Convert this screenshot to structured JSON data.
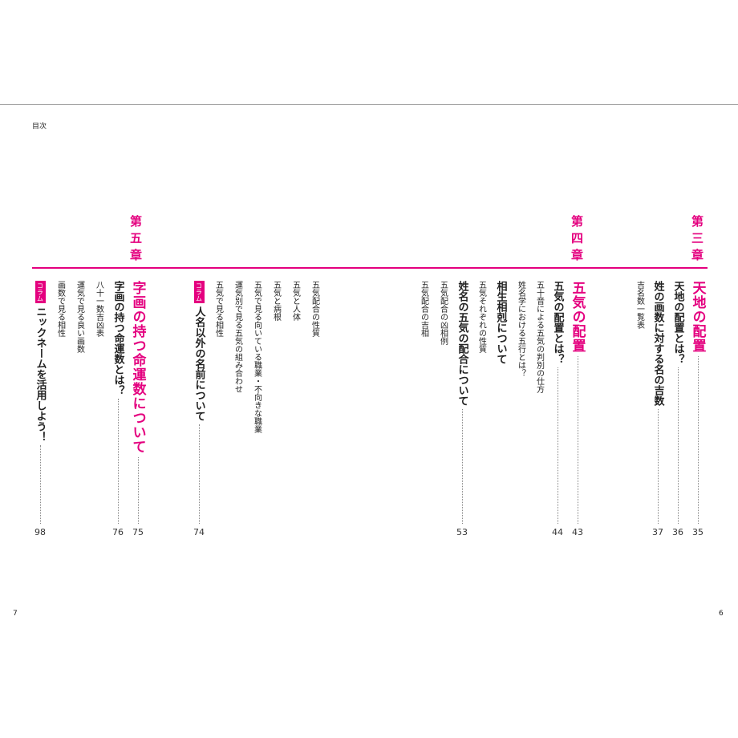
{
  "header": {
    "title": "目次"
  },
  "pages": {
    "left": "7",
    "right": "6"
  },
  "chapters": [
    {
      "label": "第三章",
      "entries": [
        {
          "title": "天地の配置",
          "page": "35"
        },
        {
          "title": "天地の配置とは？",
          "page": "36"
        },
        {
          "title": "姓の画数に対する名の吉数",
          "page": "37"
        },
        {
          "title": "吉名数一覧表"
        }
      ]
    },
    {
      "label": "第四章",
      "entries": [
        {
          "title": "五気の配置",
          "page": "43"
        },
        {
          "title": "五気の配置とは？",
          "page": "44"
        },
        {
          "title": "五十音による五気の判別の仕方"
        },
        {
          "title": "姓名学における五行とは？"
        },
        {
          "title": "相生相剋について"
        },
        {
          "title": "五気それぞれの性質"
        },
        {
          "title": "姓名の五気の配合について",
          "page": "53"
        },
        {
          "title": "五気配合の凶相例"
        },
        {
          "title": "五気配合の吉相"
        },
        {
          "title": "五気配合の性質"
        },
        {
          "title": "五気と人体"
        },
        {
          "title": "五気と病根"
        },
        {
          "title": "五気で見る向いている職業・不向きな職業"
        },
        {
          "title": "運気別で見る五気の組み合わせ"
        },
        {
          "title": "五気で見る相性"
        },
        {
          "badge": "コラム",
          "title": "人名以外の名前について",
          "page": "74"
        }
      ]
    },
    {
      "label": "第五章",
      "entries": [
        {
          "title": "字画の持つ命運数について",
          "page": "75"
        },
        {
          "title": "字画の持つ命運数とは？",
          "page": "76"
        },
        {
          "title": "八十一数吉凶表"
        },
        {
          "title": "運気で見る良い画数"
        },
        {
          "title": "画数で見る相性"
        },
        {
          "badge": "コラム",
          "title": "ニックネームを活用しよう！",
          "page": "98"
        }
      ]
    }
  ]
}
